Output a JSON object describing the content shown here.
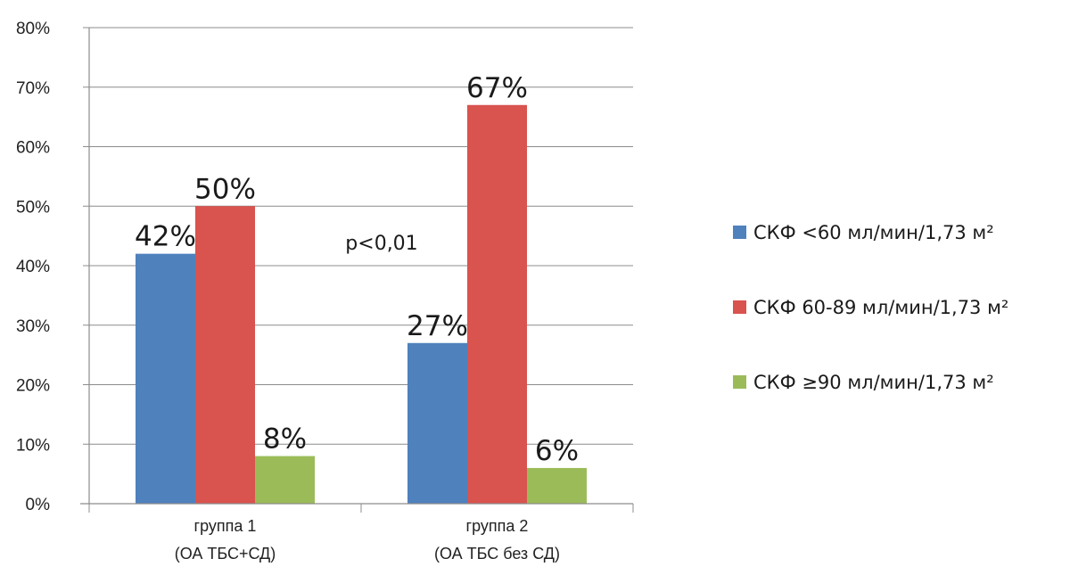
{
  "chart_data": {
    "type": "bar",
    "categories": [
      {
        "line1": "группа 1",
        "line2": "(ОА ТБС+СД)"
      },
      {
        "line1": "группа 2",
        "line2": "(ОА ТБС без СД)"
      }
    ],
    "series": [
      {
        "name": "СКФ <60 мл/мин/1,73 м²",
        "color": "#4f81bd",
        "values": [
          42,
          27
        ],
        "labels": [
          "42%",
          "27%"
        ]
      },
      {
        "name": "СКФ 60-89 мл/мин/1,73 м²",
        "color": "#d9534f",
        "values": [
          50,
          67
        ],
        "labels": [
          "50%",
          "67%"
        ]
      },
      {
        "name": "СКФ ≥90 мл/мин/1,73 м²",
        "color": "#9bbb59",
        "values": [
          8,
          6
        ],
        "labels": [
          "8%",
          "6%"
        ]
      }
    ],
    "y_ticks": [
      "0%",
      "10%",
      "20%",
      "30%",
      "40%",
      "50%",
      "60%",
      "70%",
      "80%"
    ],
    "ylim": [
      0,
      80
    ],
    "grid": true,
    "legend_position": "right",
    "annotation": "p<0,01"
  }
}
